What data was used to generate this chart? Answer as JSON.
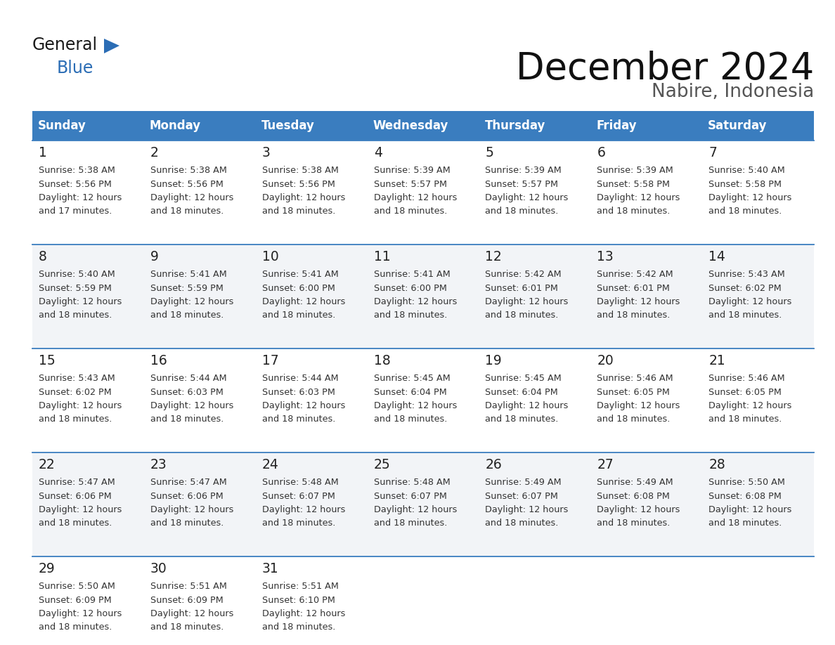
{
  "title": "December 2024",
  "subtitle": "Nabire, Indonesia",
  "header_bg_color": "#3a7dbf",
  "header_text_color": "#FFFFFF",
  "days_of_week": [
    "Sunday",
    "Monday",
    "Tuesday",
    "Wednesday",
    "Thursday",
    "Friday",
    "Saturday"
  ],
  "border_color": "#3a7dbf",
  "text_color": "#333333",
  "day_num_color": "#222222",
  "bg_color_odd": "#f2f4f7",
  "bg_color_even": "#ffffff",
  "logo_general_color": "#1a1a1a",
  "logo_blue_color": "#2b6db5",
  "calendar_data": [
    [
      {
        "day": 1,
        "sunrise": "5:38 AM",
        "sunset": "5:56 PM",
        "daylight_suffix": "17 minutes."
      },
      {
        "day": 2,
        "sunrise": "5:38 AM",
        "sunset": "5:56 PM",
        "daylight_suffix": "18 minutes."
      },
      {
        "day": 3,
        "sunrise": "5:38 AM",
        "sunset": "5:56 PM",
        "daylight_suffix": "18 minutes."
      },
      {
        "day": 4,
        "sunrise": "5:39 AM",
        "sunset": "5:57 PM",
        "daylight_suffix": "18 minutes."
      },
      {
        "day": 5,
        "sunrise": "5:39 AM",
        "sunset": "5:57 PM",
        "daylight_suffix": "18 minutes."
      },
      {
        "day": 6,
        "sunrise": "5:39 AM",
        "sunset": "5:58 PM",
        "daylight_suffix": "18 minutes."
      },
      {
        "day": 7,
        "sunrise": "5:40 AM",
        "sunset": "5:58 PM",
        "daylight_suffix": "18 minutes."
      }
    ],
    [
      {
        "day": 8,
        "sunrise": "5:40 AM",
        "sunset": "5:59 PM",
        "daylight_suffix": "18 minutes."
      },
      {
        "day": 9,
        "sunrise": "5:41 AM",
        "sunset": "5:59 PM",
        "daylight_suffix": "18 minutes."
      },
      {
        "day": 10,
        "sunrise": "5:41 AM",
        "sunset": "6:00 PM",
        "daylight_suffix": "18 minutes."
      },
      {
        "day": 11,
        "sunrise": "5:41 AM",
        "sunset": "6:00 PM",
        "daylight_suffix": "18 minutes."
      },
      {
        "day": 12,
        "sunrise": "5:42 AM",
        "sunset": "6:01 PM",
        "daylight_suffix": "18 minutes."
      },
      {
        "day": 13,
        "sunrise": "5:42 AM",
        "sunset": "6:01 PM",
        "daylight_suffix": "18 minutes."
      },
      {
        "day": 14,
        "sunrise": "5:43 AM",
        "sunset": "6:02 PM",
        "daylight_suffix": "18 minutes."
      }
    ],
    [
      {
        "day": 15,
        "sunrise": "5:43 AM",
        "sunset": "6:02 PM",
        "daylight_suffix": "18 minutes."
      },
      {
        "day": 16,
        "sunrise": "5:44 AM",
        "sunset": "6:03 PM",
        "daylight_suffix": "18 minutes."
      },
      {
        "day": 17,
        "sunrise": "5:44 AM",
        "sunset": "6:03 PM",
        "daylight_suffix": "18 minutes."
      },
      {
        "day": 18,
        "sunrise": "5:45 AM",
        "sunset": "6:04 PM",
        "daylight_suffix": "18 minutes."
      },
      {
        "day": 19,
        "sunrise": "5:45 AM",
        "sunset": "6:04 PM",
        "daylight_suffix": "18 minutes."
      },
      {
        "day": 20,
        "sunrise": "5:46 AM",
        "sunset": "6:05 PM",
        "daylight_suffix": "18 minutes."
      },
      {
        "day": 21,
        "sunrise": "5:46 AM",
        "sunset": "6:05 PM",
        "daylight_suffix": "18 minutes."
      }
    ],
    [
      {
        "day": 22,
        "sunrise": "5:47 AM",
        "sunset": "6:06 PM",
        "daylight_suffix": "18 minutes."
      },
      {
        "day": 23,
        "sunrise": "5:47 AM",
        "sunset": "6:06 PM",
        "daylight_suffix": "18 minutes."
      },
      {
        "day": 24,
        "sunrise": "5:48 AM",
        "sunset": "6:07 PM",
        "daylight_suffix": "18 minutes."
      },
      {
        "day": 25,
        "sunrise": "5:48 AM",
        "sunset": "6:07 PM",
        "daylight_suffix": "18 minutes."
      },
      {
        "day": 26,
        "sunrise": "5:49 AM",
        "sunset": "6:07 PM",
        "daylight_suffix": "18 minutes."
      },
      {
        "day": 27,
        "sunrise": "5:49 AM",
        "sunset": "6:08 PM",
        "daylight_suffix": "18 minutes."
      },
      {
        "day": 28,
        "sunrise": "5:50 AM",
        "sunset": "6:08 PM",
        "daylight_suffix": "18 minutes."
      }
    ],
    [
      {
        "day": 29,
        "sunrise": "5:50 AM",
        "sunset": "6:09 PM",
        "daylight_suffix": "18 minutes."
      },
      {
        "day": 30,
        "sunrise": "5:51 AM",
        "sunset": "6:09 PM",
        "daylight_suffix": "18 minutes."
      },
      {
        "day": 31,
        "sunrise": "5:51 AM",
        "sunset": "6:10 PM",
        "daylight_suffix": "18 minutes."
      },
      null,
      null,
      null,
      null
    ]
  ]
}
